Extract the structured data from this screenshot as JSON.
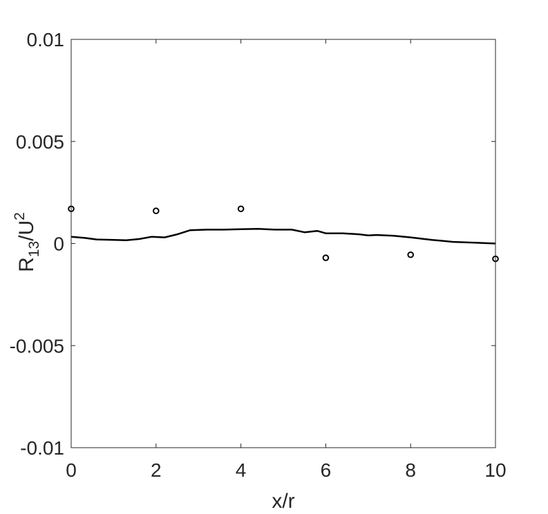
{
  "chart_data": {
    "type": "line",
    "xlabel": "x/r",
    "ylabel": {
      "base": "R",
      "subscript": "13",
      "middle": "/U",
      "superscript": "2"
    },
    "xlim": [
      0,
      10
    ],
    "ylim": [
      -0.01,
      0.01
    ],
    "x_ticks": [
      0,
      2,
      4,
      6,
      8,
      10
    ],
    "x_tick_labels": [
      "0",
      "2",
      "4",
      "6",
      "8",
      "10"
    ],
    "y_ticks": [
      -0.01,
      -0.005,
      0,
      0.005,
      0.01
    ],
    "y_tick_labels": [
      "-0.01",
      "-0.005",
      "0",
      "0.005",
      "0.01"
    ],
    "grid": false,
    "box": true,
    "series": [
      {
        "style": "line",
        "color": "#000000",
        "x": [
          0,
          0.3,
          0.6,
          1.0,
          1.3,
          1.6,
          1.9,
          2.2,
          2.5,
          2.8,
          3.2,
          3.6,
          4.0,
          4.4,
          4.8,
          5.2,
          5.5,
          5.8,
          6.0,
          6.4,
          6.8,
          7.0,
          7.2,
          7.6,
          8.0,
          8.5,
          9.0,
          9.5,
          10.0
        ],
        "y": [
          0.00033,
          0.00028,
          0.0002,
          0.00018,
          0.00016,
          0.00022,
          0.00033,
          0.0003,
          0.00045,
          0.00065,
          0.00068,
          0.00068,
          0.0007,
          0.00072,
          0.00068,
          0.00068,
          0.00055,
          0.00062,
          0.0005,
          0.0005,
          0.00045,
          0.0004,
          0.00042,
          0.00038,
          0.0003,
          0.00018,
          8e-05,
          4e-05,
          0.0
        ]
      },
      {
        "style": "markers",
        "marker": "circle",
        "color": "#000000",
        "x": [
          0,
          2,
          4,
          6,
          8,
          10
        ],
        "y": [
          0.0017,
          0.0016,
          0.0017,
          -0.0007,
          -0.00055,
          -0.00075
        ]
      }
    ]
  }
}
